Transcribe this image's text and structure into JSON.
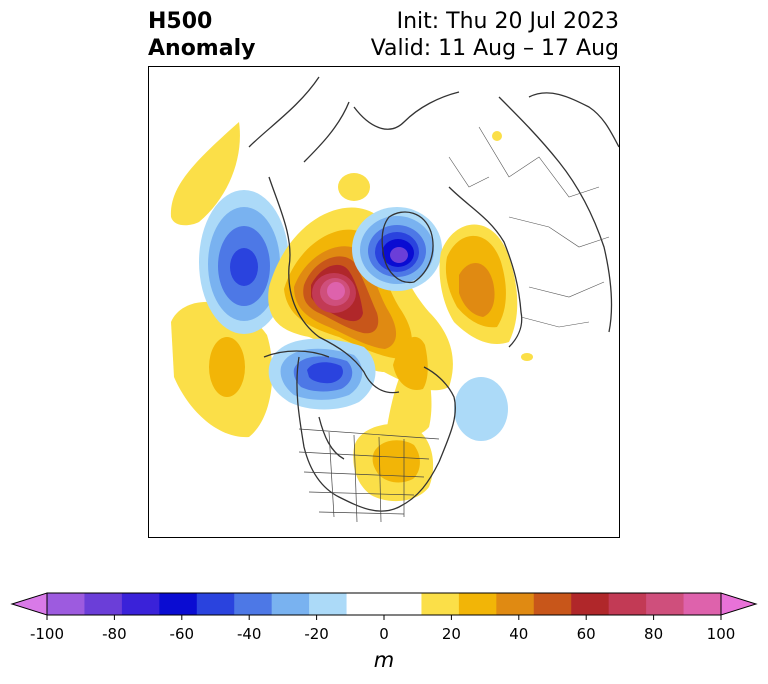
{
  "title": {
    "left_line1": "H500",
    "left_line2": "Anomaly",
    "right_line1": "Init: Thu 20 Jul 2023",
    "right_line2": "Valid: 11 Aug – 17 Aug"
  },
  "colorbar": {
    "ticks": [
      "-100",
      "-80",
      "-60",
      "-40",
      "-20",
      "0",
      "20",
      "40",
      "60",
      "80",
      "100"
    ],
    "unit": "m",
    "range": [
      -100,
      100
    ],
    "step": 10,
    "colors": [
      "#d97ae8",
      "#9d5bdf",
      "#6b3ed8",
      "#3a22d9",
      "#0a0cd2",
      "#2a43de",
      "#4d78e6",
      "#79b2f0",
      "#acdaf8",
      "#ffffff",
      "#ffffff",
      "#fbdf48",
      "#f2b507",
      "#e08a12",
      "#c8561a",
      "#b0272a",
      "#c23a55",
      "#cf4f7c",
      "#de62ac",
      "#e872d8"
    ]
  }
}
